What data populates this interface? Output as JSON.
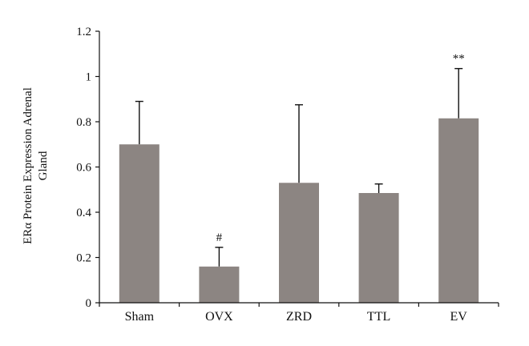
{
  "chart_data": {
    "type": "bar",
    "title": "",
    "xlabel": "",
    "ylabel_lines": [
      "ERα Protein Expression Adrenal",
      "Gland"
    ],
    "categories": [
      "Sham",
      "OVX",
      "ZRD",
      "TTL",
      "EV"
    ],
    "series": [
      {
        "values": [
          0.7,
          0.16,
          0.53,
          0.485,
          0.815
        ],
        "error_upper": [
          0.19,
          0.085,
          0.345,
          0.04,
          0.22
        ]
      }
    ],
    "annotations": [
      "",
      "#",
      "",
      "",
      "**"
    ],
    "ylim": [
      0,
      1.2
    ],
    "yticks": [
      0,
      0.2,
      0.4,
      0.6,
      0.8,
      1,
      1.2
    ],
    "ytick_labels": [
      "0",
      "0.2",
      "0.4",
      "0.6",
      "0.8",
      "1",
      "1.2"
    ],
    "grid": false,
    "legend": "none",
    "colors": {
      "bar": "#8c8582",
      "axis": "#111111",
      "text": "#111111"
    }
  }
}
